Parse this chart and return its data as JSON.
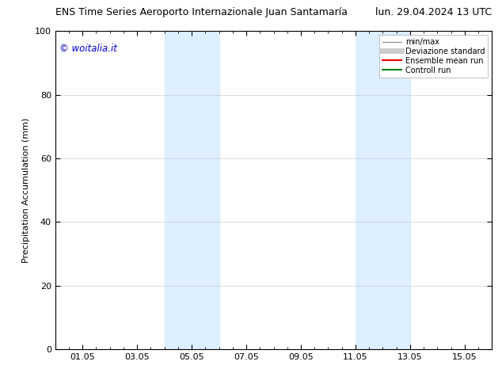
{
  "title_left": "ENS Time Series Aeroporto Internazionale Juan Santamaría",
  "title_right": "lun. 29.04.2024 13 UTC",
  "ylabel": "Precipitation Accumulation (mm)",
  "ylim": [
    0,
    100
  ],
  "yticks": [
    0,
    20,
    40,
    60,
    80,
    100
  ],
  "x_tick_labels": [
    "01.05",
    "03.05",
    "05.05",
    "07.05",
    "09.05",
    "11.05",
    "13.05",
    "15.05"
  ],
  "x_tick_positions": [
    1,
    3,
    5,
    7,
    9,
    11,
    13,
    15
  ],
  "x_min": 0,
  "x_max": 16,
  "shaded_bands": [
    {
      "x_start": 4.0,
      "x_end": 6.0,
      "color": "#ddeeff"
    },
    {
      "x_start": 11.0,
      "x_end": 13.0,
      "color": "#ddeeff"
    }
  ],
  "legend_entries": [
    {
      "label": "min/max",
      "color": "#999999",
      "linestyle": "-",
      "linewidth": 1.0
    },
    {
      "label": "Deviazione standard",
      "color": "#cccccc",
      "linestyle": "-",
      "linewidth": 5
    },
    {
      "label": "Ensemble mean run",
      "color": "red",
      "linestyle": "-",
      "linewidth": 1.5
    },
    {
      "label": "Controll run",
      "color": "green",
      "linestyle": "-",
      "linewidth": 1.5
    }
  ],
  "watermark_text": "© woitalia.it",
  "watermark_color": "#0000cc",
  "background_color": "#ffffff",
  "plot_bg_color": "#ffffff",
  "grid_color": "#cccccc",
  "title_fontsize": 9,
  "axis_fontsize": 8,
  "tick_fontsize": 8
}
